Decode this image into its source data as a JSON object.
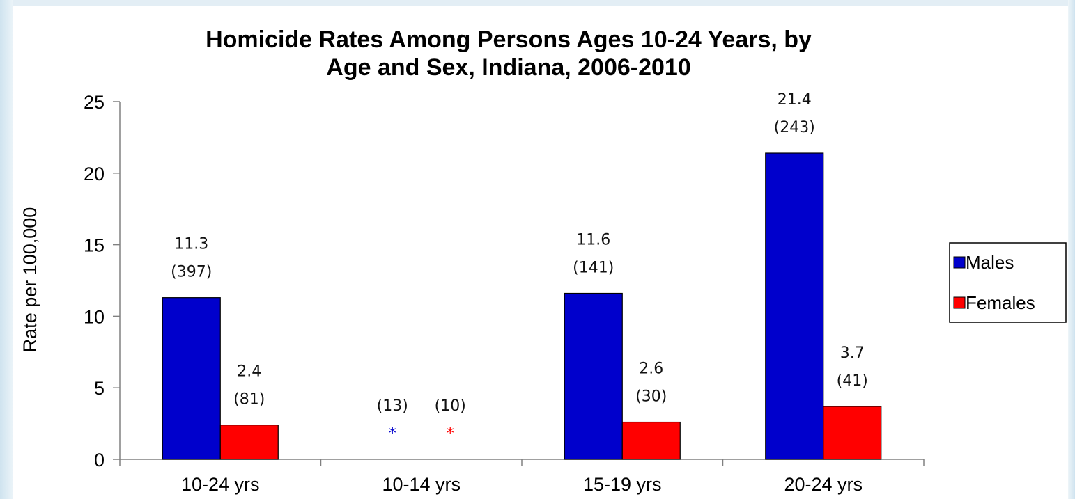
{
  "chart_data": {
    "type": "bar",
    "title_lines": [
      "Homicide Rates Among Persons Ages 10-24 Years, by",
      "Age and Sex, Indiana, 2006-2010"
    ],
    "ylabel": "Rate per 100,000",
    "xlabel": "",
    "ylim": [
      0,
      25
    ],
    "yticks": [
      0,
      5,
      10,
      15,
      20,
      25
    ],
    "categories": [
      "10-24 yrs",
      "10-14 yrs",
      "15-19 yrs",
      "20-24 yrs"
    ],
    "series": [
      {
        "name": "Males",
        "color": "#0000cc",
        "values": [
          11.3,
          null,
          11.6,
          21.4
        ],
        "value_labels": [
          "11.3",
          "",
          "11.6",
          "21.4"
        ],
        "count_labels": [
          "(397)",
          "(13)",
          "(141)",
          "(243)"
        ],
        "suppressed_marker": [
          "",
          "*",
          "",
          ""
        ]
      },
      {
        "name": "Females",
        "color": "#ff0000",
        "values": [
          2.4,
          null,
          2.6,
          3.7
        ],
        "value_labels": [
          "2.4",
          "",
          "2.6",
          "3.7"
        ],
        "count_labels": [
          "(81)",
          "(10)",
          "(30)",
          "(41)"
        ],
        "suppressed_marker": [
          "",
          "*",
          "",
          ""
        ]
      }
    ],
    "legend_position": "right",
    "grid": false
  }
}
